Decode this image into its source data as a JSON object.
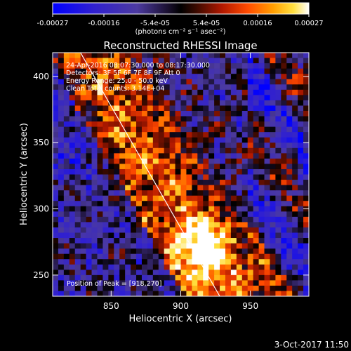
{
  "colorbar": {
    "ticks": [
      "-0.00027",
      "-0.00016",
      "-5.4e-05",
      "5.4e-05",
      "0.00016",
      "0.00027"
    ],
    "unit_label": "(photons cm⁻² s⁻¹ asec⁻²)"
  },
  "image_info": {
    "lines": [
      "24-Apr-2016 08:07:30.000 to 08:17:30.000",
      "Detectors: 3F 5F 6F 7F 8F 9F Att 0",
      "Energy Range: 25.0 - 50.0 keV",
      "Clean     Total counts: 3.14E+04"
    ],
    "peak": "Position of Peak = [918,270]"
  },
  "footer": {
    "timestamp": "3-Oct-2017 11:50"
  },
  "chart_data": {
    "type": "heatmap",
    "title": "Reconstructed RHESSI Image",
    "xlabel": "Heliocentric X (arcsec)",
    "ylabel": "Heliocentric Y (arcsec)",
    "xlim": [
      808,
      992
    ],
    "ylim": [
      234,
      418
    ],
    "x_ticks": [
      850,
      900,
      950
    ],
    "y_ticks": [
      250,
      300,
      350,
      400
    ],
    "zlim": [
      -0.00027,
      0.00027
    ],
    "peak_position": [
      918,
      270
    ],
    "limb_line": {
      "x": [
        828,
        928
      ],
      "y": [
        418,
        234
      ]
    },
    "grid": false
  }
}
